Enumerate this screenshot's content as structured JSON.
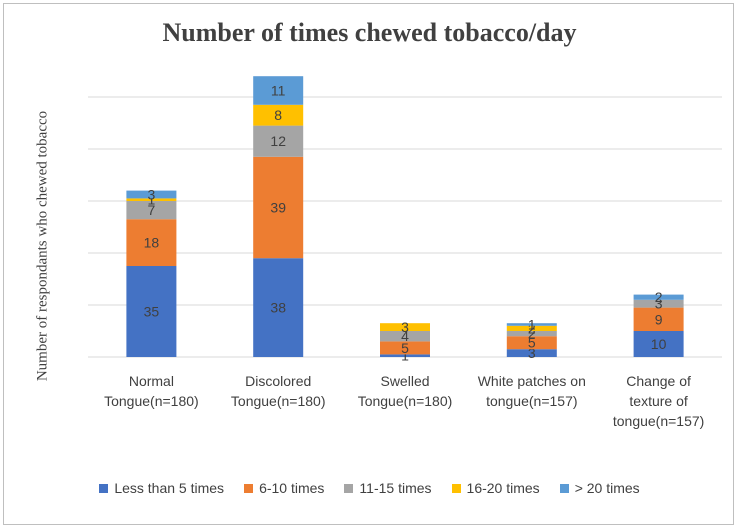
{
  "chart_data": {
    "type": "bar",
    "stacked": true,
    "title": "Number of times chewed tobacco/day",
    "xlabel": "",
    "ylabel": "Number of respondants who chewed tobacco",
    "ylim": [
      0,
      110
    ],
    "grid": true,
    "legend_position": "bottom",
    "categories": [
      [
        "Normal",
        "Tongue(n=180)"
      ],
      [
        "Discolored",
        "Tongue(n=180)"
      ],
      [
        "Swelled",
        "Tongue(n=180)"
      ],
      [
        "White patches on",
        "tongue(n=157)"
      ],
      [
        "Change of",
        "texture of",
        "tongue(n=157)"
      ]
    ],
    "series": [
      {
        "name": "Less than 5 times",
        "color": "#4472c4",
        "values": [
          35,
          38,
          1,
          3,
          10
        ]
      },
      {
        "name": "6-10 times",
        "color": "#ed7d31",
        "values": [
          18,
          39,
          5,
          5,
          9
        ]
      },
      {
        "name": "11-15 times",
        "color": "#a5a5a5",
        "values": [
          7,
          12,
          4,
          2,
          3
        ]
      },
      {
        "name": "16-20 times",
        "color": "#ffc000",
        "values": [
          1,
          8,
          3,
          2,
          0
        ]
      },
      {
        "name": "> 20 times",
        "color": "#5b9bd5",
        "values": [
          3,
          11,
          0,
          1,
          2
        ]
      }
    ]
  }
}
